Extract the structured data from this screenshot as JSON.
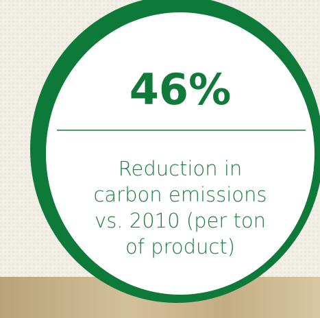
{
  "stat": {
    "value": "46%",
    "caption": [
      "Reduction in",
      "carbon emissions",
      "vs. 2010 (per ton",
      "of product)"
    ]
  }
}
